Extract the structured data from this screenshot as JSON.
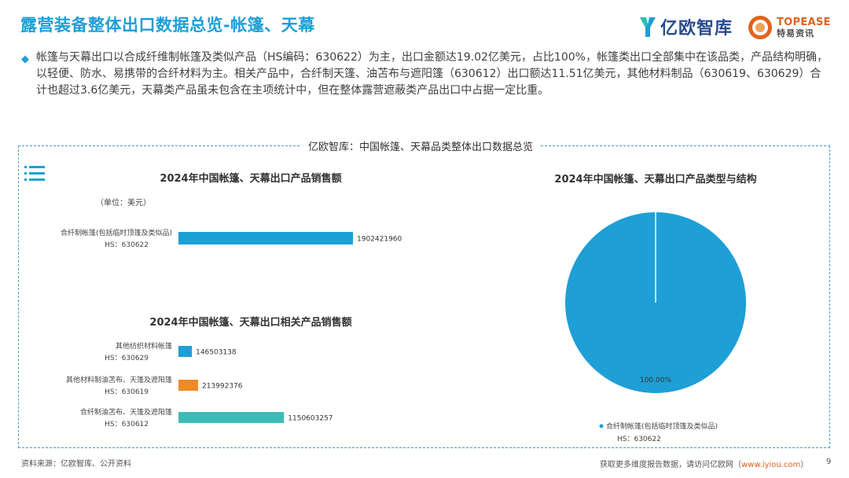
{
  "header": {
    "title": "露营装备整体出口数据总览-帐篷、天幕",
    "logo_yiou": "亿欧智库",
    "logo_topease_en": "TOPEASE",
    "logo_topease_cn": "特易资讯"
  },
  "summary": "帐篷与天幕出口以合成纤维制帐篷及类似产品（HS编码：630622）为主，出口金额达19.02亿美元，占比100%，帐篷类出口全部集中在该品类，产品结构明确，以轻便、防水、易携带的合纤材料为主。相关产品中，合纤制天篷、油苫布与遮阳篷（630612）出口额达11.51亿美元，其他材料制品（630619、630629）合计也超过3.6亿美元，天幕类产品虽未包含在主项统计中，但在整体露营遮蔽类产品出口中占据一定比重。",
  "panel": {
    "title": "亿欧智库：中国帐篷、天幕品类整体出口数据总览",
    "menu_icon": "list-icon"
  },
  "colors": {
    "accent": "#1e9fd6",
    "bar_blue": "#1e9fd6",
    "bar_orange": "#f08a24",
    "bar_teal": "#3dbcb6",
    "pie_blue": "#1e9fd6"
  },
  "chart_data": [
    {
      "type": "bar",
      "orientation": "horizontal",
      "title": "2024年中国帐篷、天幕出口产品销售额",
      "unit_label": "（单位：美元）",
      "categories": [
        [
          "合纤制帐篷(包括临时顶篷及类似品)",
          "HS：630622"
        ]
      ],
      "values": [
        1902421960
      ],
      "value_labels": [
        "1902421960"
      ],
      "colors": [
        "#1e9fd6"
      ],
      "grid": false,
      "legend": "none"
    },
    {
      "type": "bar",
      "orientation": "horizontal",
      "title": "2024年中国帐篷、天幕出口相关产品销售额",
      "categories": [
        [
          "其他纺织材料帐篷",
          "HS：630629"
        ],
        [
          "其他材料制油苫布、天篷及遮阳篷",
          "HS：630619"
        ],
        [
          "合纤制油苫布、天篷及遮阳篷",
          "HS：630612"
        ]
      ],
      "values": [
        146503138,
        213992376,
        1150603257
      ],
      "value_labels": [
        "146503138",
        "213992376",
        "1150603257"
      ],
      "colors": [
        "#1e9fd6",
        "#f08a24",
        "#3dbcb6"
      ],
      "grid": false,
      "legend": "none"
    },
    {
      "type": "pie",
      "title": "2024年中国帐篷、天幕出口产品类型与结构",
      "slices": [
        {
          "label": "合纤制帐篷(包括临时顶篷及类似品)",
          "sub": "HS：630622",
          "value": 100.0,
          "display": "100.00%",
          "color": "#1e9fd6"
        }
      ],
      "legend": "bottom-left"
    }
  ],
  "footer": {
    "source": "资料来源：亿欧智库、公开资料",
    "more_text": "获取更多维度报告数据，请访问亿欧网（",
    "more_link": "www.iyiou.com",
    "more_close": "）",
    "page": "9"
  }
}
